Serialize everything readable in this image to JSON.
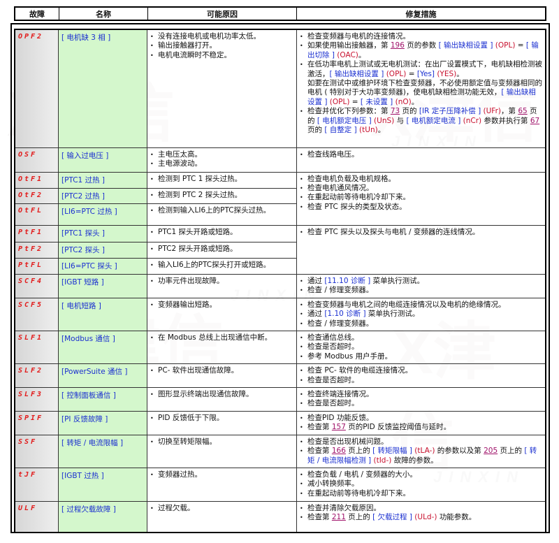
{
  "watermark": {
    "logo": "津信",
    "text": "JINXIN"
  },
  "header": [
    "故障",
    "名称",
    "可能原因",
    "修复措施"
  ],
  "rows": [
    {
      "code": "OPF2",
      "name": "[ 电机缺 3 相 ]",
      "causes": [
        "没有连接电机或电机功率太低。",
        "输出接触器打开。",
        "电机电流瞬时不稳定。"
      ],
      "fixes": [
        {
          "s": [
            [
              "t",
              "检查变频器与电机的连接情况。"
            ]
          ]
        },
        {
          "s": [
            [
              "t",
              "如果使用输出接触器，第 "
            ],
            [
              "u",
              "196"
            ],
            [
              "t",
              " 页的参数 "
            ],
            [
              "b",
              "[ 输出缺相设置 ]"
            ],
            [
              "r",
              " (OPL) "
            ],
            [
              "t",
              "= "
            ],
            [
              "b",
              "[ 输出切除 ]"
            ],
            [
              "r",
              " (OAC)"
            ],
            [
              "t",
              "。"
            ]
          ]
        },
        {
          "s": [
            [
              "t",
              "在低功率电机上测试或无电机测试：在出厂设置模式下，电机缺相检测被激活，"
            ],
            [
              "b",
              "[ 输出缺相设置 ]"
            ],
            [
              "r",
              " (OPL) "
            ],
            [
              "t",
              "= "
            ],
            [
              "b",
              "[Yes]"
            ],
            [
              "r",
              " (YES)"
            ],
            [
              "t",
              "。"
            ]
          ]
        },
        {
          "nb": true,
          "s": [
            [
              "t",
              "如要在测试中或维护环境下检查变频器，不必使用额定值与变频器相同的电机 ( 特别对于大功率变频器)，使电机缺相检测功能无效，"
            ],
            [
              "b",
              "[ 输出缺相设置 ]"
            ],
            [
              "r",
              " (OPL) "
            ],
            [
              "t",
              "= "
            ],
            [
              "b",
              "[ 未设置 ]"
            ],
            [
              "r",
              " (nO)"
            ],
            [
              "t",
              "。"
            ]
          ]
        },
        {
          "s": [
            [
              "t",
              "检查并优化下列参数：第 "
            ],
            [
              "u",
              "73"
            ],
            [
              "t",
              " 页的 "
            ],
            [
              "b",
              "[IR 定子压降补偿 ]"
            ],
            [
              "r",
              " (UFr)"
            ],
            [
              "t",
              "，第 "
            ],
            [
              "u",
              "65"
            ],
            [
              "t",
              " 页的 "
            ],
            [
              "b",
              "[ 电机额定电压 ]"
            ],
            [
              "r",
              " (UnS) "
            ],
            [
              "t",
              "与 "
            ],
            [
              "b",
              "[ 电机额定电流 ]"
            ],
            [
              "r",
              " (nCr) "
            ],
            [
              "t",
              "参数并执行第 "
            ],
            [
              "u",
              "67"
            ],
            [
              "t",
              " 页的 "
            ],
            [
              "b",
              "[ 自整定 ]"
            ],
            [
              "r",
              " (tUn)"
            ],
            [
              "t",
              "。"
            ]
          ]
        }
      ]
    },
    {
      "code": "OSF",
      "name": "[ 输入过电压 ]",
      "causes": [
        "主电压太高。",
        "主电源波动。"
      ],
      "fixes": [
        {
          "s": [
            [
              "t",
              "检查线路电压。"
            ]
          ]
        }
      ]
    },
    {
      "code": "OtF1",
      "name": "[PTC1 过热 ]",
      "causes": [
        "检测到 PTC 1 探头过热。"
      ],
      "span": 3,
      "fixes": [
        {
          "s": [
            [
              "t",
              "检查电机负载及电机规格。"
            ]
          ]
        },
        {
          "s": [
            [
              "t",
              "检查电机通风情况。"
            ]
          ]
        },
        {
          "s": [
            [
              "t",
              "在重起动前等待电机冷却下来。"
            ]
          ]
        },
        {
          "s": [
            [
              "t",
              "检查 PTC 探头的类型及状态。"
            ]
          ]
        }
      ]
    },
    {
      "code": "OtF2",
      "name": "[PTC2 过热 ]",
      "causes": [
        "检测到 PTC 2 探头过热。"
      ]
    },
    {
      "code": "OtFL",
      "name": "[LI6=PTC 过热 ]",
      "causes": [
        "检测到输入LI6上的PTC探头过热。"
      ]
    },
    {
      "code": "PtF1",
      "name": "[PTC1 探头 ]",
      "causes": [
        "PTC1 探头开路或短路。"
      ],
      "span": 3,
      "fixes": [
        {
          "s": [
            [
              "t",
              "检查 PTC 探头以及探头与电机 / 变频器的连线情况。"
            ]
          ]
        }
      ]
    },
    {
      "code": "PtF2",
      "name": "[PTC2 探头 ]",
      "causes": [
        "PTC2 探头开路或短路。"
      ]
    },
    {
      "code": "PtFL",
      "name": "[LI6=PTC 探头 ]",
      "causes": [
        "输入LI6上的PTC探头打开或短路。"
      ]
    },
    {
      "code": "SCF4",
      "name": "[IGBT 短路 ]",
      "causes": [
        "功率元件出现故障。"
      ],
      "fixes": [
        {
          "s": [
            [
              "t",
              "通过 "
            ],
            [
              "b",
              "[11.10 诊断 ]"
            ],
            [
              "t",
              " 菜单执行测试。"
            ]
          ]
        },
        {
          "s": [
            [
              "t",
              "检查 / 修理变频器。"
            ]
          ]
        }
      ]
    },
    {
      "code": "SCF5",
      "name": "[ 电机短路 ]",
      "causes": [
        "变频器输出短路。"
      ],
      "fixes": [
        {
          "s": [
            [
              "t",
              "检查变频器与电机之间的电缆连接情况以及电机的绝缘情况。"
            ]
          ]
        },
        {
          "s": [
            [
              "t",
              "通过 "
            ],
            [
              "b",
              "[1.10 诊断 ]"
            ],
            [
              "t",
              " 菜单执行测试。"
            ]
          ]
        },
        {
          "s": [
            [
              "t",
              "检查 / 修理变频器。"
            ]
          ]
        }
      ]
    },
    {
      "code": "SLF1",
      "name": "[Modbus 通信 ]",
      "causes": [
        "在 Modbus 总线上出现通信中断。"
      ],
      "fixes": [
        {
          "s": [
            [
              "t",
              "检查通信总线。"
            ]
          ]
        },
        {
          "s": [
            [
              "t",
              "检查是否超时。"
            ]
          ]
        },
        {
          "s": [
            [
              "t",
              "参考 Modbus 用户手册。"
            ]
          ]
        }
      ]
    },
    {
      "code": "SLF2",
      "name": "[PowerSuite 通信 ]",
      "causes": [
        "PC- 软件出现通信故障。"
      ],
      "fixes": [
        {
          "s": [
            [
              "t",
              "检查 PC- 软件的电缆连接情况。"
            ]
          ]
        },
        {
          "s": [
            [
              "t",
              "检查是否超时。"
            ]
          ]
        }
      ]
    },
    {
      "code": "SLF3",
      "name": "[ 控制面板通信 ]",
      "causes": [
        "图形显示终端出现通信故障。"
      ],
      "fixes": [
        {
          "s": [
            [
              "t",
              "检查终端连接情况。"
            ]
          ]
        },
        {
          "s": [
            [
              "t",
              "检查是否超时。"
            ]
          ]
        }
      ]
    },
    {
      "code": "SPIF",
      "name": "[PI 反馈故障 ]",
      "causes": [
        "PID 反馈低于下限。"
      ],
      "fixes": [
        {
          "s": [
            [
              "t",
              "检查PID 功能反馈。"
            ]
          ]
        },
        {
          "s": [
            [
              "t",
              "检查第 "
            ],
            [
              "u",
              "157"
            ],
            [
              "t",
              " 页的PID 反馈监控阈值与延时。"
            ]
          ]
        }
      ]
    },
    {
      "code": "SSF",
      "name": "[ 转矩 / 电流限幅 ]",
      "causes": [
        "切换至转矩限幅。"
      ],
      "fixes": [
        {
          "s": [
            [
              "t",
              "检查是否出现机械问题。"
            ]
          ]
        },
        {
          "s": [
            [
              "t",
              "检查第 "
            ],
            [
              "u",
              "166"
            ],
            [
              "t",
              " 页上的 "
            ],
            [
              "b",
              "[ 转矩限幅 ]"
            ],
            [
              "r",
              " (tLA-) "
            ],
            [
              "t",
              "的参数以及第 "
            ],
            [
              "u",
              "205"
            ],
            [
              "t",
              " 页上的 "
            ],
            [
              "b",
              "[ 转矩 / 电流限幅检测 ]"
            ],
            [
              "r",
              " (tId-) "
            ],
            [
              "t",
              "故障的参数。"
            ]
          ]
        }
      ]
    },
    {
      "code": "tJF",
      "name": "[IGBT 过热 ]",
      "causes": [
        "变频器过热。"
      ],
      "fixes": [
        {
          "s": [
            [
              "t",
              "检查负载 / 电机 / 变频器的大小。"
            ]
          ]
        },
        {
          "s": [
            [
              "t",
              "减小转换频率。"
            ]
          ]
        },
        {
          "s": [
            [
              "t",
              "在重起动前等待电机冷却下来。"
            ]
          ]
        }
      ]
    },
    {
      "code": "ULF",
      "name": "[ 过程欠载故障 ]",
      "causes": [
        "过程欠载。"
      ],
      "fixes": [
        {
          "s": [
            [
              "t",
              "检查并清除欠载原因。"
            ]
          ]
        },
        {
          "s": [
            [
              "t",
              "检查第 "
            ],
            [
              "u",
              "211"
            ],
            [
              "t",
              " 页上的 "
            ],
            [
              "b",
              "[ 欠载过程 ]"
            ],
            [
              "r",
              " (ULd-) "
            ],
            [
              "t",
              "功能参数。"
            ]
          ]
        }
      ]
    }
  ]
}
